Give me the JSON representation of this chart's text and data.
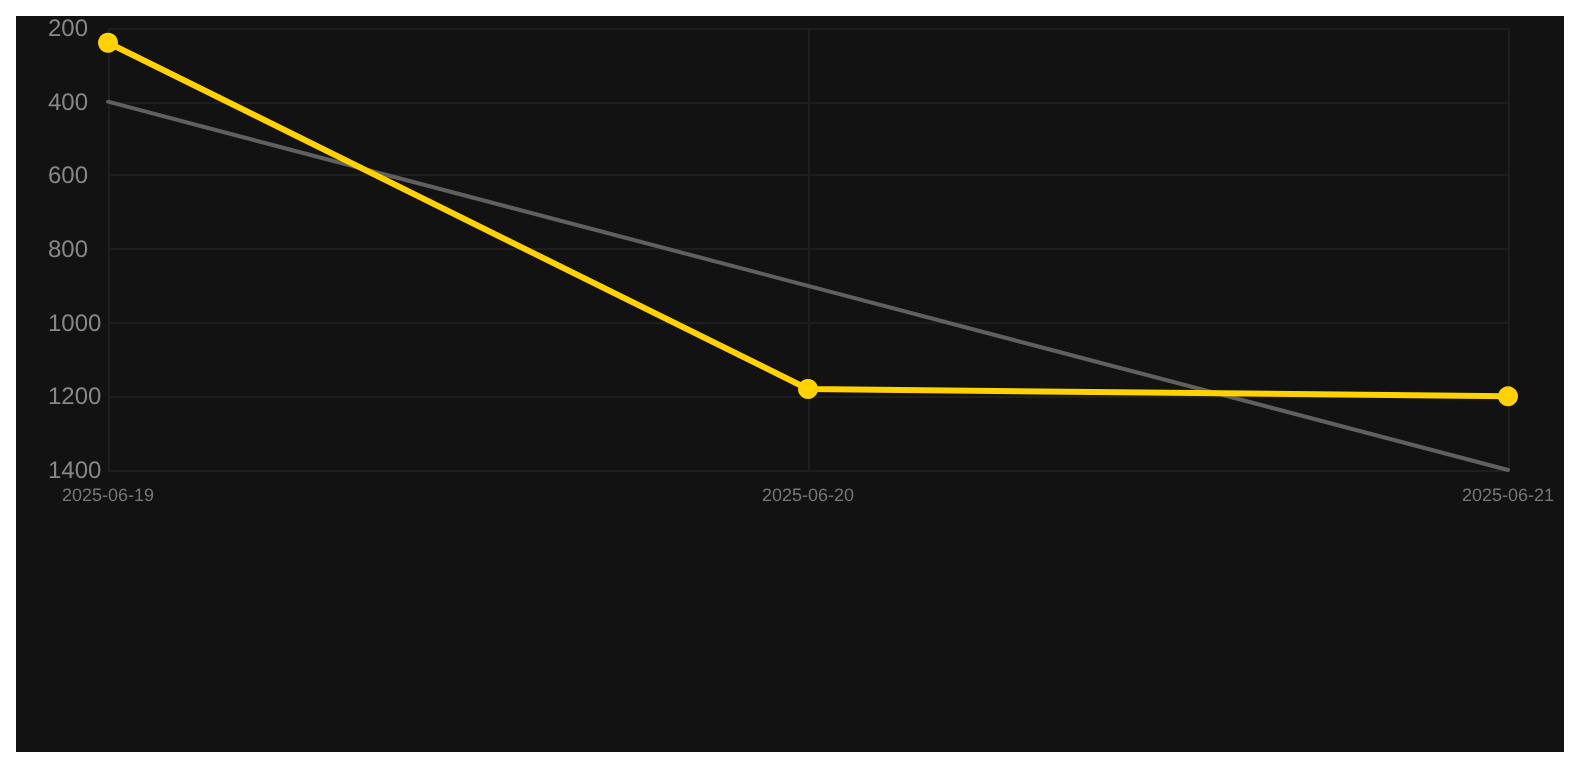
{
  "chart_data": {
    "type": "line",
    "x": [
      "2025-06-19",
      "2025-06-20",
      "2025-06-21"
    ],
    "series": [
      {
        "color": "#ffd200",
        "values": [
          240,
          1180,
          1200
        ],
        "marker": "circle"
      },
      {
        "type": "line",
        "color": "#606060",
        "x": [
          "2025-06-19",
          "2025-06-21"
        ],
        "values": [
          400,
          1400
        ],
        "marker": "none"
      }
    ],
    "xlim": [
      "2025-06-19",
      "2025-06-21"
    ],
    "xticks": [
      "2025-06-19",
      "2025-06-20",
      "2025-06-21"
    ],
    "ylim": [
      1400,
      200
    ],
    "yticks": [
      200,
      400,
      600,
      800,
      1000,
      1200,
      1400
    ],
    "grid": true
  }
}
